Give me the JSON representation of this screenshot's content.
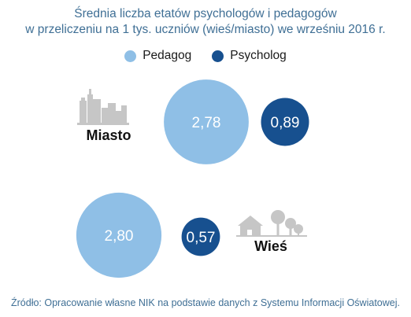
{
  "title_line1": "Średnia liczba etatów psychologów i pedagogów",
  "title_line2": "w przeliczeniu na 1 tys.  uczniów (wieś/miasto) we wrześniu 2016 r.",
  "source": "Źródło: Opracowanie własne NIK na podstawie danych z Systemu Informacji Oświatowej.",
  "legend": [
    {
      "label": "Pedagog",
      "color": "#8fbfe6"
    },
    {
      "label": "Psycholog",
      "color": "#17508f"
    }
  ],
  "chart_data": {
    "type": "bubble",
    "title": "Średnia liczba etatów psychologów i pedagogów w przeliczeniu na 1 tys.  uczniów (wieś/miasto) we wrześniu 2016 r.",
    "categories": [
      "Miasto",
      "Wieś"
    ],
    "series": [
      {
        "name": "Pedagog",
        "values": [
          2.78,
          2.8
        ],
        "labels": [
          "2,78",
          "2,80"
        ],
        "color": "#8fbfe6"
      },
      {
        "name": "Psycholog",
        "values": [
          0.89,
          0.57
        ],
        "labels": [
          "0,89",
          "0,57"
        ],
        "color": "#17508f"
      }
    ],
    "icons": [
      "city-skyline-icon",
      "village-icon"
    ]
  }
}
